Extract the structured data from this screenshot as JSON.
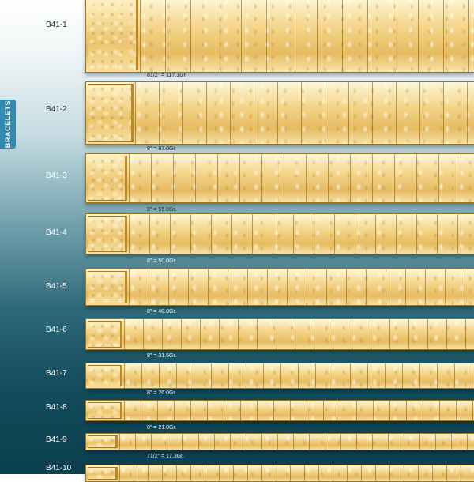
{
  "category_label": "BRACELETS",
  "colors": {
    "gold": "#eec26a",
    "tab": "#2f8bb3",
    "bg_top": "#ffffff",
    "bg_bottom": "#0b3f4f"
  },
  "items": [
    {
      "code": "B41-1",
      "weight": "81/2\" = 117.1Gr."
    },
    {
      "code": "B41-2",
      "weight": "8\" = 87.0Gr."
    },
    {
      "code": "B41-3",
      "weight": "8\" = 55.0Gr."
    },
    {
      "code": "B41-4",
      "weight": "8\" = 50.0Gr."
    },
    {
      "code": "B41-5",
      "weight": "8\" = 40.0Gr."
    },
    {
      "code": "B41-6",
      "weight": "8\" = 31.5Gr."
    },
    {
      "code": "B41-7",
      "weight": "8\" = 26.0Gr."
    },
    {
      "code": "B41-8",
      "weight": "8\" = 21.0Gr."
    },
    {
      "code": "B41-9",
      "weight": "71/2\" = 17.3Gr."
    },
    {
      "code": "B41-10",
      "weight": ""
    }
  ]
}
